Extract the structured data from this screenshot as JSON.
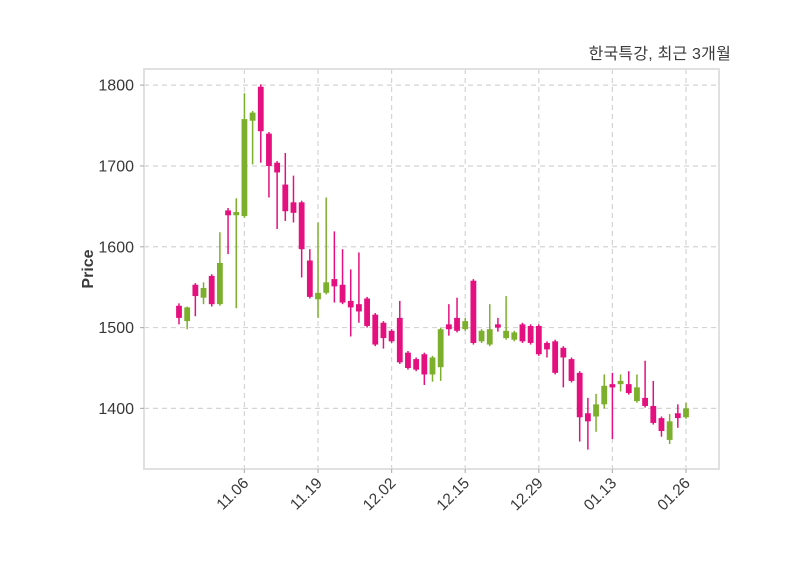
{
  "title": "한국특강, 최근 3개월",
  "colors": {
    "up": "#7CB02C",
    "down": "#E4107F",
    "grid": "#d4d4d4",
    "axis_border": "#e0e0e0",
    "tick_mark": "#b5b5b5",
    "text": "#3b3b3b",
    "background": "#ffffff"
  },
  "chart_data": {
    "type": "candlestick",
    "title": "한국특강, 최근 3개월",
    "xlabel": "",
    "ylabel": "Price",
    "grid": true,
    "grid_style": "dashed",
    "ylim": [
      1325,
      1820
    ],
    "yticks": [
      1400,
      1500,
      1600,
      1700,
      1800
    ],
    "xticks": [
      {
        "index": 8,
        "label": "11.06"
      },
      {
        "index": 17,
        "label": "11.19"
      },
      {
        "index": 26,
        "label": "12.02"
      },
      {
        "index": 35,
        "label": "12.15"
      },
      {
        "index": 44,
        "label": "12.29"
      },
      {
        "index": 53,
        "label": "01.13"
      },
      {
        "index": 62,
        "label": "01.26"
      }
    ],
    "ohlc_order": [
      "open",
      "high",
      "low",
      "close"
    ],
    "up_color": "#7CB02C",
    "down_color": "#E4107F",
    "candles": [
      [
        1527,
        1530,
        1504,
        1512
      ],
      [
        1508,
        1526,
        1498,
        1525
      ],
      [
        1553,
        1555,
        1514,
        1539
      ],
      [
        1537,
        1556,
        1529,
        1549
      ],
      [
        1564,
        1566,
        1526,
        1529
      ],
      [
        1529,
        1618,
        1527,
        1580
      ],
      [
        1645,
        1648,
        1591,
        1639
      ],
      [
        1639,
        1660,
        1524,
        1643
      ],
      [
        1638,
        1790,
        1636,
        1758
      ],
      [
        1756,
        1768,
        1702,
        1766
      ],
      [
        1798,
        1801,
        1704,
        1743
      ],
      [
        1740,
        1742,
        1661,
        1700
      ],
      [
        1704,
        1706,
        1622,
        1692
      ],
      [
        1677,
        1716,
        1632,
        1644
      ],
      [
        1655,
        1688,
        1630,
        1642
      ],
      [
        1655,
        1657,
        1562,
        1597
      ],
      [
        1583,
        1597,
        1536,
        1538
      ],
      [
        1535,
        1630,
        1512,
        1543
      ],
      [
        1543,
        1661,
        1541,
        1556
      ],
      [
        1560,
        1619,
        1531,
        1551
      ],
      [
        1553,
        1597,
        1529,
        1531
      ],
      [
        1533,
        1572,
        1489,
        1525
      ],
      [
        1529,
        1593,
        1506,
        1520
      ],
      [
        1536,
        1538,
        1500,
        1502
      ],
      [
        1516,
        1518,
        1477,
        1479
      ],
      [
        1506,
        1508,
        1474,
        1487
      ],
      [
        1496,
        1498,
        1481,
        1483
      ],
      [
        1512,
        1533,
        1455,
        1457
      ],
      [
        1469,
        1471,
        1448,
        1450
      ],
      [
        1461,
        1463,
        1446,
        1448
      ],
      [
        1467,
        1469,
        1429,
        1442
      ],
      [
        1442,
        1465,
        1433,
        1463
      ],
      [
        1451,
        1500,
        1434,
        1498
      ],
      [
        1504,
        1529,
        1490,
        1498
      ],
      [
        1512,
        1537,
        1494,
        1496
      ],
      [
        1498,
        1512,
        1496,
        1508
      ],
      [
        1558,
        1560,
        1479,
        1481
      ],
      [
        1483,
        1498,
        1481,
        1496
      ],
      [
        1479,
        1529,
        1477,
        1498
      ],
      [
        1504,
        1512,
        1495,
        1500
      ],
      [
        1487,
        1539,
        1485,
        1496
      ],
      [
        1485,
        1496,
        1483,
        1494
      ],
      [
        1504,
        1506,
        1481,
        1483
      ],
      [
        1502,
        1504,
        1479,
        1481
      ],
      [
        1502,
        1504,
        1465,
        1467
      ],
      [
        1481,
        1483,
        1463,
        1473
      ],
      [
        1483,
        1485,
        1442,
        1444
      ],
      [
        1475,
        1477,
        1426,
        1463
      ],
      [
        1461,
        1463,
        1432,
        1434
      ],
      [
        1444,
        1446,
        1359,
        1389
      ],
      [
        1394,
        1413,
        1349,
        1384
      ],
      [
        1390,
        1418,
        1371,
        1405
      ],
      [
        1405,
        1442,
        1400,
        1428
      ],
      [
        1430,
        1444,
        1362,
        1426
      ],
      [
        1430,
        1442,
        1421,
        1434
      ],
      [
        1430,
        1446,
        1417,
        1419
      ],
      [
        1409,
        1442,
        1407,
        1426
      ],
      [
        1413,
        1459,
        1401,
        1403
      ],
      [
        1403,
        1434,
        1380,
        1382
      ],
      [
        1388,
        1390,
        1365,
        1372
      ],
      [
        1361,
        1393,
        1356,
        1384
      ],
      [
        1394,
        1405,
        1376,
        1388
      ],
      [
        1389,
        1407,
        1387,
        1400
      ]
    ]
  }
}
